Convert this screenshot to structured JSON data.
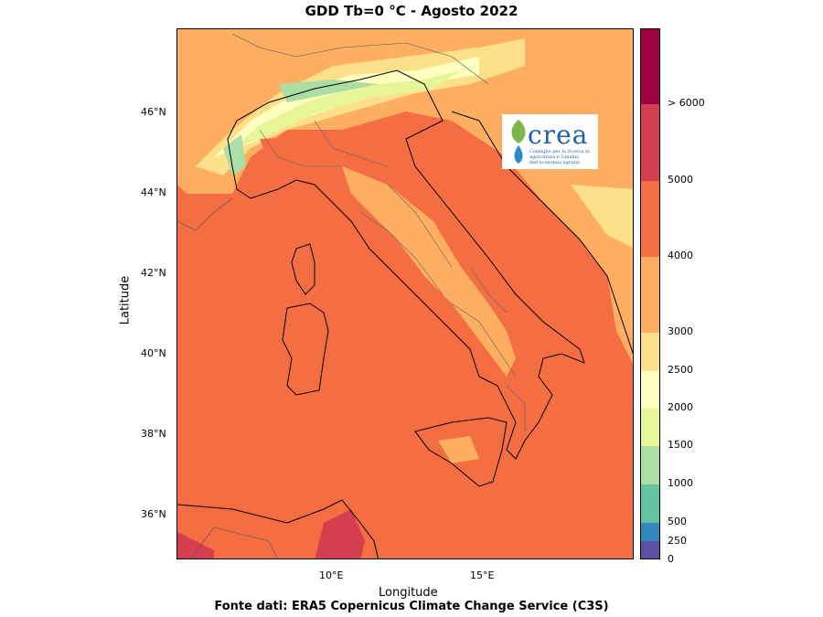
{
  "title": "GDD Tb=0 °C - Agosto 2022",
  "source": "Fonte dati: ERA5 Copernicus Climate Change Service (C3S)",
  "axes": {
    "xlabel": "Longitude",
    "ylabel": "Latitude",
    "xticks": [
      {
        "value": 10,
        "label": "10°E"
      },
      {
        "value": 15,
        "label": "15°E"
      }
    ],
    "yticks": [
      {
        "value": 46,
        "label": "46°N"
      },
      {
        "value": 44,
        "label": "44°N"
      },
      {
        "value": 42,
        "label": "42°N"
      },
      {
        "value": 40,
        "label": "40°N"
      },
      {
        "value": 38,
        "label": "38°N"
      },
      {
        "value": 36,
        "label": "36°N"
      }
    ],
    "lon_range": [
      5,
      20
    ],
    "lat_range": [
      34.9,
      48.1
    ]
  },
  "colorbar": {
    "levels": [
      {
        "label": "0",
        "color": "#5e4fa2"
      },
      {
        "label": "250",
        "color": "#3288bd"
      },
      {
        "label": "500",
        "color": "#66c2a5"
      },
      {
        "label": "1000",
        "color": "#abdda4"
      },
      {
        "label": "1500",
        "color": "#e6f598"
      },
      {
        "label": "2000",
        "color": "#ffffbf"
      },
      {
        "label": "2500",
        "color": "#fee08b"
      },
      {
        "label": "3000",
        "color": "#fdae61"
      },
      {
        "label": "4000",
        "color": "#f46d43"
      },
      {
        "label": "5000",
        "color": "#d53e4f"
      },
      {
        "label": "> 6000",
        "color": "#9e0142"
      }
    ]
  },
  "logo": {
    "word": "crea",
    "subtitle": "Consiglio per la ricerca in agricoltura e l'analisi dell'economia agraria"
  }
}
